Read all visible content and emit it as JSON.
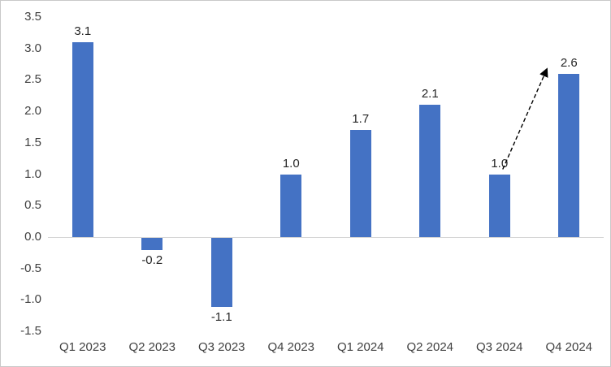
{
  "chart_data": {
    "type": "bar",
    "title": "",
    "xlabel": "",
    "ylabel": "",
    "categories": [
      "Q1 2023",
      "Q2 2023",
      "Q3 2023",
      "Q4 2023",
      "Q1 2024",
      "Q2 2024",
      "Q3 2024",
      "Q4 2024"
    ],
    "values": [
      3.1,
      -0.2,
      -1.1,
      1.0,
      1.7,
      2.1,
      1.0,
      2.6
    ],
    "data_labels": [
      "3.1",
      "-0.2",
      "-1.1",
      "1.0",
      "1.7",
      "2.1",
      "1.0",
      "2.6"
    ],
    "y_ticks": [
      "3.5",
      "3.0",
      "2.5",
      "2.0",
      "1.5",
      "1.0",
      "0.5",
      "0.0",
      "-0.5",
      "-1.0",
      "-1.5"
    ],
    "ylim": [
      -1.5,
      3.5
    ],
    "grid": "zero-line-only",
    "legend": "none",
    "colors": {
      "bar": "#4472C4",
      "axis_text": "#404040",
      "label_text": "#262626",
      "zero_line": "#d6d6d6",
      "annotation": "#000000"
    },
    "annotation": {
      "type": "dashed-arrow",
      "from_category": "Q3 2024",
      "to_category": "Q4 2024",
      "description": "dashed arrow rising from Q3 2024 label toward Q4 2024 value"
    }
  }
}
